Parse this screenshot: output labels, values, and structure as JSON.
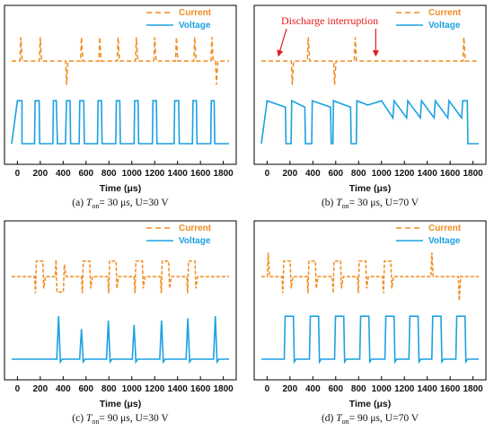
{
  "colors": {
    "current": "#f08c1e",
    "voltage": "#1ba1e2",
    "annotation": "#e41a1c",
    "frame": "#000000"
  },
  "chart_data": [
    {
      "type": "line",
      "panel": "a",
      "caption": {
        "prefix": "(a) ",
        "T": "T",
        "sub": "on",
        "rest": "= 30 μs, U=30 V"
      },
      "xlabel": "Time (μs)",
      "ylabel": "",
      "xlim": [
        -50,
        1850
      ],
      "xticks": [
        "0",
        "200",
        "400",
        "600",
        "800",
        "1000",
        "1200",
        "1400",
        "1600",
        "1800"
      ],
      "grid": false,
      "legend": {
        "placement": "top-right",
        "entries": [
          "Current",
          "Voltage"
        ]
      },
      "annotations": [],
      "series": [
        {
          "name": "Current",
          "style": "dashed",
          "baseline": 0.0,
          "pulses": [
            [
              30,
              1
            ],
            [
              200,
              1
            ],
            [
              430,
              -1
            ],
            [
              560,
              1
            ],
            [
              720,
              1
            ],
            [
              880,
              1
            ],
            [
              1040,
              1
            ],
            [
              1200,
              1
            ],
            [
              1390,
              1
            ],
            [
              1550,
              1
            ],
            [
              1700,
              1
            ],
            [
              1740,
              -1
            ]
          ]
        },
        {
          "name": "Voltage",
          "style": "solid",
          "segments": [
            [
              -50,
              0.0
            ],
            [
              0,
              1.0
            ],
            [
              40,
              1.0
            ],
            [
              40,
              0.0
            ],
            [
              150,
              0.0
            ],
            [
              155,
              1.0
            ],
            [
              190,
              1.0
            ],
            [
              195,
              0.0
            ],
            [
              310,
              0.0
            ],
            [
              315,
              1.0
            ],
            [
              340,
              1.0
            ],
            [
              350,
              0.0
            ],
            [
              420,
              0.0
            ],
            [
              430,
              1.0
            ],
            [
              460,
              1.0
            ],
            [
              465,
              0.0
            ],
            [
              540,
              0.0
            ],
            [
              545,
              1.0
            ],
            [
              580,
              1.0
            ],
            [
              585,
              0.0
            ],
            [
              700,
              0.0
            ],
            [
              705,
              1.0
            ],
            [
              735,
              1.0
            ],
            [
              740,
              0.0
            ],
            [
              860,
              0.0
            ],
            [
              865,
              1.0
            ],
            [
              895,
              1.0
            ],
            [
              900,
              0.0
            ],
            [
              1020,
              0.0
            ],
            [
              1025,
              1.0
            ],
            [
              1055,
              1.0
            ],
            [
              1060,
              0.0
            ],
            [
              1180,
              0.0
            ],
            [
              1185,
              1.0
            ],
            [
              1215,
              1.0
            ],
            [
              1220,
              0.0
            ],
            [
              1370,
              0.0
            ],
            [
              1375,
              1.0
            ],
            [
              1410,
              1.0
            ],
            [
              1415,
              0.0
            ],
            [
              1530,
              0.0
            ],
            [
              1535,
              1.0
            ],
            [
              1565,
              1.0
            ],
            [
              1570,
              0.0
            ],
            [
              1690,
              0.0
            ],
            [
              1695,
              1.0
            ],
            [
              1720,
              1.0
            ],
            [
              1725,
              0.0
            ],
            [
              1850,
              0.0
            ]
          ]
        }
      ]
    },
    {
      "type": "line",
      "panel": "b",
      "caption": {
        "prefix": "(b) ",
        "T": "T",
        "sub": "on",
        "rest": "= 30 μs, U=70 V"
      },
      "xlabel": "Time (μs)",
      "ylabel": "",
      "xlim": [
        -50,
        1850
      ],
      "xticks": [
        "0",
        "200",
        "400",
        "600",
        "800",
        "1000",
        "1200",
        "1400",
        "1600",
        "1800"
      ],
      "grid": false,
      "legend": {
        "placement": "top-right",
        "entries": [
          "Current",
          "Voltage"
        ]
      },
      "annotations": [
        {
          "text": "Discharge interruption",
          "arrows_at": [
            100,
            950
          ]
        }
      ],
      "series": [
        {
          "name": "Current",
          "style": "dashed",
          "baseline": 0.0,
          "pulses": [
            [
              220,
              -1
            ],
            [
              360,
              1
            ],
            [
              590,
              -1
            ],
            [
              770,
              1
            ],
            [
              1720,
              1
            ]
          ]
        },
        {
          "name": "Voltage",
          "style": "solid",
          "segments": [
            [
              -50,
              0.0
            ],
            [
              0,
              1.0
            ],
            [
              160,
              0.85
            ],
            [
              165,
              0.0
            ],
            [
              210,
              0.0
            ],
            [
              215,
              1.0
            ],
            [
              330,
              0.85
            ],
            [
              335,
              0.0
            ],
            [
              390,
              0.0
            ],
            [
              395,
              1.0
            ],
            [
              555,
              0.85
            ],
            [
              560,
              0.0
            ],
            [
              575,
              0.0
            ],
            [
              580,
              1.0
            ],
            [
              730,
              0.85
            ],
            [
              735,
              0.0
            ],
            [
              780,
              0.0
            ],
            [
              785,
              1.0
            ],
            [
              880,
              0.9
            ],
            [
              1000,
              1.0
            ],
            [
              1100,
              0.6
            ],
            [
              1110,
              1.0
            ],
            [
              1220,
              0.6
            ],
            [
              1230,
              1.0
            ],
            [
              1340,
              0.6
            ],
            [
              1350,
              1.0
            ],
            [
              1460,
              0.6
            ],
            [
              1470,
              1.0
            ],
            [
              1580,
              0.6
            ],
            [
              1590,
              1.0
            ],
            [
              1700,
              0.6
            ],
            [
              1710,
              1.0
            ],
            [
              1750,
              1.0
            ],
            [
              1755,
              0.0
            ],
            [
              1850,
              0.0
            ]
          ]
        }
      ]
    },
    {
      "type": "line",
      "panel": "c",
      "caption": {
        "prefix": "(c) ",
        "T": "T",
        "sub": "on",
        "rest": "= 90 μs, U=30 V"
      },
      "xlabel": "Time (μs)",
      "ylabel": "",
      "xlim": [
        -50,
        1850
      ],
      "xticks": [
        "0",
        "200",
        "400",
        "600",
        "800",
        "1000",
        "1200",
        "1400",
        "1600",
        "1800"
      ],
      "grid": false,
      "legend": {
        "placement": "top-right",
        "entries": [
          "Current",
          "Voltage"
        ]
      },
      "annotations": [],
      "series": [
        {
          "name": "Current",
          "style": "dashed",
          "baseline": 0.0,
          "blocks": [
            [
              150,
              230,
              1
            ],
            [
              330,
              410,
              -1
            ],
            [
              560,
              640,
              1
            ],
            [
              790,
              870,
              1
            ],
            [
              1020,
              1100,
              1
            ],
            [
              1250,
              1330,
              1
            ],
            [
              1480,
              1560,
              1
            ]
          ]
        },
        {
          "name": "Voltage",
          "style": "solid",
          "baseline": 0.0,
          "spikes": [
            [
              360,
              1
            ],
            [
              560,
              0.7
            ],
            [
              795,
              0.9
            ],
            [
              1020,
              0.8
            ],
            [
              1260,
              0.9
            ],
            [
              1490,
              0.95
            ],
            [
              1730,
              1
            ]
          ]
        }
      ]
    },
    {
      "type": "line",
      "panel": "d",
      "caption": {
        "prefix": "(d) ",
        "T": "T",
        "sub": "on",
        "rest": "= 90 μs, U=70 V"
      },
      "xlabel": "Time (μs)",
      "ylabel": "",
      "xlim": [
        -50,
        1850
      ],
      "xticks": [
        "0",
        "200",
        "400",
        "600",
        "800",
        "1000",
        "1200",
        "1400",
        "1600",
        "1800"
      ],
      "grid": false,
      "legend": {
        "placement": "top-right",
        "entries": [
          "Current",
          "Voltage"
        ]
      },
      "annotations": [],
      "series": [
        {
          "name": "Current",
          "style": "dashed",
          "baseline": 0.0,
          "blocks": [
            [
              130,
              210,
              1
            ],
            [
              350,
              430,
              1
            ],
            [
              570,
              650,
              1
            ],
            [
              790,
              870,
              1
            ],
            [
              1010,
              1090,
              1
            ]
          ],
          "pulses": [
            [
              10,
              1
            ],
            [
              1440,
              1
            ],
            [
              1680,
              -1
            ]
          ]
        },
        {
          "name": "Voltage",
          "style": "solid",
          "baseline": 0.0,
          "blocks": [
            [
              150,
              230,
              1
            ],
            [
              370,
              450,
              1
            ],
            [
              590,
              670,
              1
            ],
            [
              810,
              890,
              1
            ],
            [
              1030,
              1110,
              1
            ],
            [
              1240,
              1320,
              1
            ],
            [
              1440,
              1520,
              1
            ],
            [
              1650,
              1730,
              1
            ]
          ]
        }
      ]
    }
  ]
}
